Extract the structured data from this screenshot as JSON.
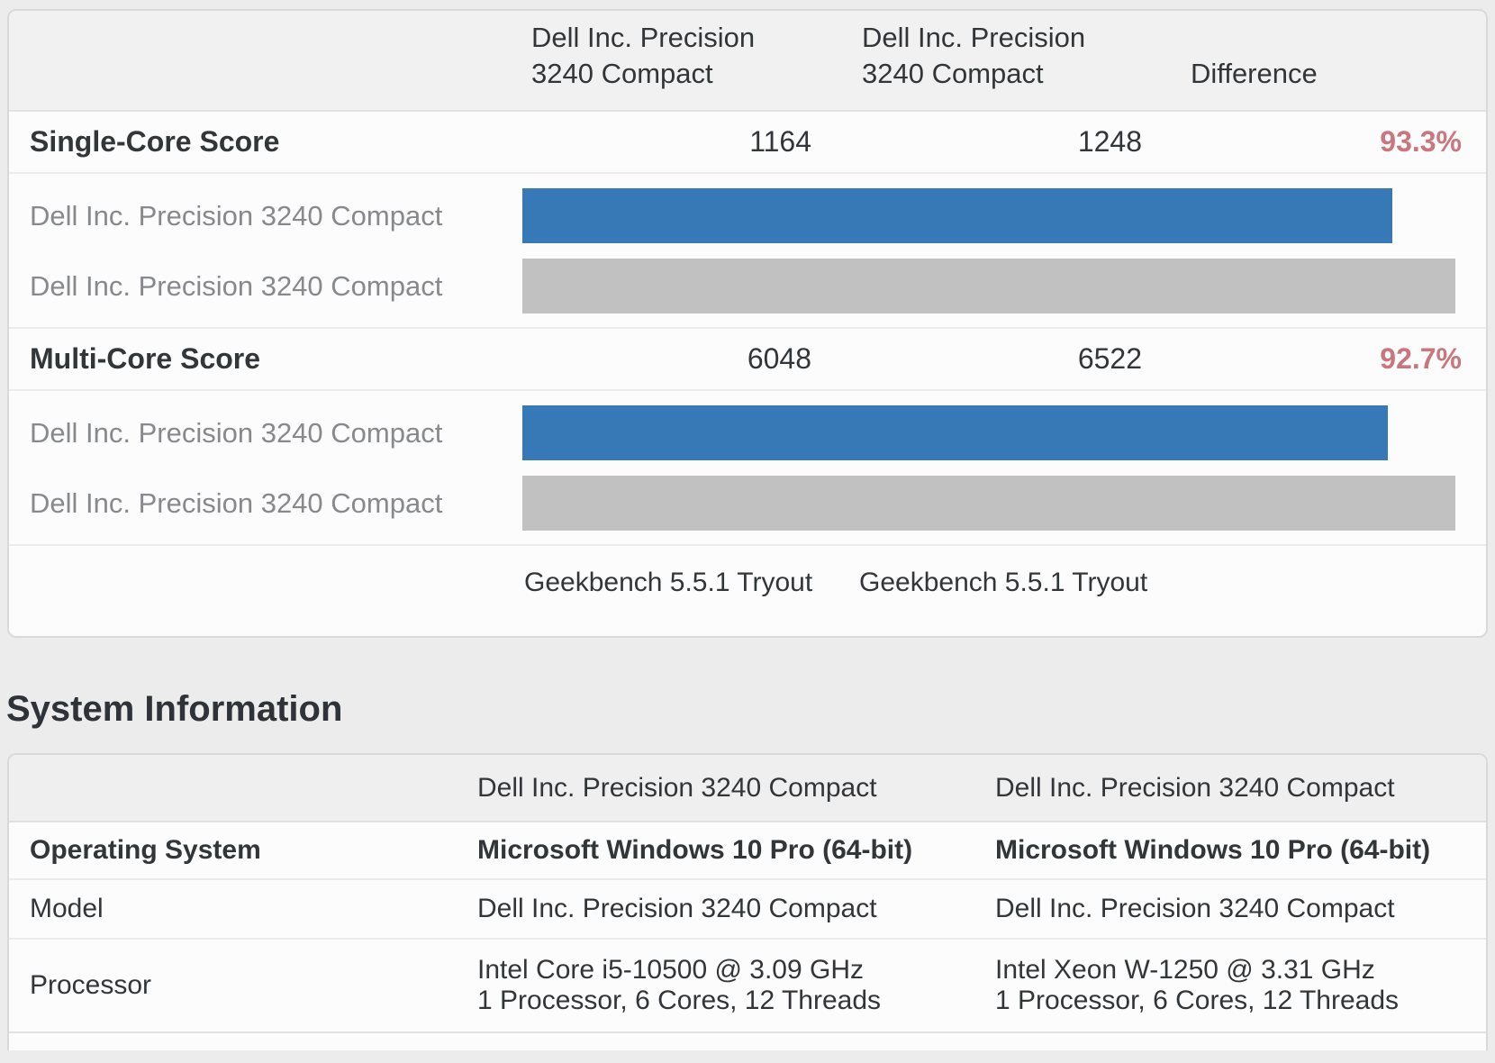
{
  "comparison": {
    "headers": {
      "device1": [
        "Dell Inc. Precision",
        "3240 Compact"
      ],
      "device2": [
        "Dell Inc. Precision",
        "3240 Compact"
      ],
      "difference": "Difference"
    },
    "sections": [
      {
        "label": "Single-Core Score",
        "value1": "1164",
        "value2": "1248",
        "difference": "93.3%",
        "bars": [
          {
            "label": "Dell Inc. Precision 3240 Compact",
            "value": 1164
          },
          {
            "label": "Dell Inc. Precision 3240 Compact",
            "value": 1248
          }
        ]
      },
      {
        "label": "Multi-Core Score",
        "value1": "6048",
        "value2": "6522",
        "difference": "92.7%",
        "bars": [
          {
            "label": "Dell Inc. Precision 3240 Compact",
            "value": 6048
          },
          {
            "label": "Dell Inc. Precision 3240 Compact",
            "value": 6522
          }
        ]
      }
    ],
    "footer": {
      "left": "Geekbench 5.5.1 Tryout",
      "right": "Geekbench 5.5.1 Tryout"
    }
  },
  "system_information": {
    "title": "System Information",
    "columns": [
      "Dell Inc. Precision 3240 Compact",
      "Dell Inc. Precision 3240 Compact"
    ],
    "rows": [
      {
        "label": "Operating System",
        "value1": [
          "Microsoft Windows 10 Pro (64-bit)"
        ],
        "value2": [
          "Microsoft Windows 10 Pro (64-bit)"
        ]
      },
      {
        "label": "Model",
        "value1": [
          "Dell Inc. Precision 3240 Compact"
        ],
        "value2": [
          "Dell Inc. Precision 3240 Compact"
        ]
      },
      {
        "label": "Processor",
        "value1": [
          "Intel Core i5-10500 @ 3.09 GHz",
          "1 Processor, 6 Cores, 12 Threads"
        ],
        "value2": [
          "Intel Xeon W-1250 @ 3.31 GHz",
          "1 Processor, 6 Cores, 12 Threads"
        ]
      }
    ]
  },
  "colors": {
    "page_bg": "#ececec",
    "card_bg": "#fcfcfc",
    "header_band": "#f1f1f1",
    "bar_primary": "#3779b7",
    "bar_secondary": "#c1c1c1",
    "diff_value": "#c9767e",
    "text_dark": "#333639",
    "text_gray": "#87898c"
  },
  "chart_data": [
    {
      "type": "bar",
      "orientation": "horizontal",
      "title": "Single-Core Score",
      "categories": [
        "Dell Inc. Precision 3240 Compact",
        "Dell Inc. Precision 3240 Compact"
      ],
      "values": [
        1164,
        1248
      ],
      "bar_colors": [
        "#3779b7",
        "#c1c1c1"
      ],
      "xlim": [
        0,
        1248
      ],
      "grid": false,
      "legend": false
    },
    {
      "type": "bar",
      "orientation": "horizontal",
      "title": "Multi-Core Score",
      "categories": [
        "Dell Inc. Precision 3240 Compact",
        "Dell Inc. Precision 3240 Compact"
      ],
      "values": [
        6048,
        6522
      ],
      "bar_colors": [
        "#3779b7",
        "#c1c1c1"
      ],
      "xlim": [
        0,
        6522
      ],
      "grid": false,
      "legend": false
    }
  ]
}
